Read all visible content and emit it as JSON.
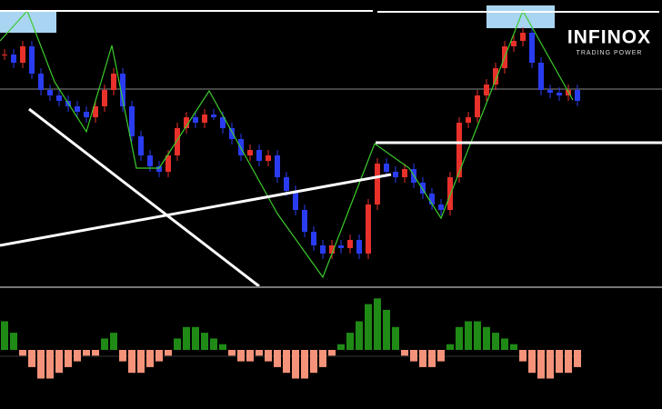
{
  "chart_data": {
    "type": "candlestick",
    "brand": "INFINOX",
    "tagline": "TRADING POWER",
    "ylim": [
      0,
      100
    ],
    "opens": [
      85,
      85,
      82,
      88,
      78,
      72,
      70,
      68,
      66,
      64,
      62,
      66,
      72,
      78,
      66,
      55,
      48,
      44,
      42,
      48,
      58,
      62,
      60,
      63,
      62,
      58,
      54,
      48,
      50,
      46,
      48,
      40,
      35,
      28,
      20,
      15,
      12,
      15,
      14,
      17,
      12,
      30,
      45,
      42,
      40,
      43,
      38,
      34,
      30,
      28,
      40,
      60,
      62,
      70,
      74,
      80,
      88,
      90,
      93,
      82,
      72,
      71,
      70,
      72
    ],
    "highs": [
      87,
      87,
      90,
      90,
      80,
      74,
      72,
      70,
      68,
      66,
      68,
      74,
      80,
      80,
      68,
      57,
      50,
      46,
      50,
      60,
      64,
      64,
      65,
      65,
      64,
      60,
      56,
      52,
      52,
      50,
      50,
      42,
      37,
      30,
      22,
      17,
      17,
      17,
      19,
      19,
      32,
      47,
      47,
      44,
      45,
      45,
      40,
      36,
      32,
      42,
      62,
      64,
      72,
      76,
      82,
      90,
      92,
      95,
      95,
      84,
      74,
      73,
      74,
      74
    ],
    "lows": [
      83,
      80,
      80,
      76,
      70,
      68,
      66,
      64,
      62,
      60,
      60,
      64,
      70,
      64,
      53,
      46,
      42,
      40,
      40,
      46,
      56,
      58,
      58,
      61,
      56,
      52,
      46,
      46,
      44,
      44,
      38,
      33,
      26,
      18,
      13,
      10,
      10,
      12,
      12,
      10,
      10,
      28,
      40,
      38,
      38,
      36,
      32,
      28,
      26,
      26,
      38,
      58,
      60,
      68,
      72,
      78,
      86,
      88,
      80,
      70,
      69,
      68,
      68,
      66
    ],
    "closes": [
      85,
      82,
      88,
      78,
      72,
      70,
      68,
      66,
      64,
      62,
      66,
      72,
      78,
      66,
      55,
      48,
      44,
      42,
      48,
      58,
      62,
      60,
      63,
      62,
      58,
      54,
      48,
      50,
      46,
      48,
      40,
      35,
      28,
      20,
      15,
      12,
      15,
      14,
      17,
      12,
      30,
      45,
      42,
      40,
      43,
      38,
      34,
      30,
      28,
      40,
      60,
      62,
      70,
      74,
      80,
      88,
      90,
      93,
      82,
      72,
      71,
      70,
      72,
      68
    ],
    "up_color": "#e8312a",
    "down_color": "#2a3cf0",
    "histogram": {
      "ylim": [
        -10,
        10
      ],
      "pos_color": "#1f8a16",
      "neg_color": "#f4937a",
      "values": [
        5,
        3,
        -1,
        -3,
        -5,
        -5,
        -4,
        -3,
        -2,
        -1,
        -1,
        2,
        3,
        -2,
        -4,
        -4,
        -3,
        -2,
        -1,
        2,
        4,
        4,
        3,
        2,
        1,
        -1,
        -2,
        -2,
        -1,
        -2,
        -3,
        -4,
        -5,
        -5,
        -4,
        -3,
        -1,
        1,
        3,
        5,
        8,
        9,
        7,
        4,
        -1,
        -2,
        -3,
        -3,
        -2,
        1,
        4,
        5,
        5,
        4,
        3,
        2,
        1,
        -2,
        -4,
        -5,
        -5,
        -4,
        -4,
        -3
      ]
    }
  }
}
